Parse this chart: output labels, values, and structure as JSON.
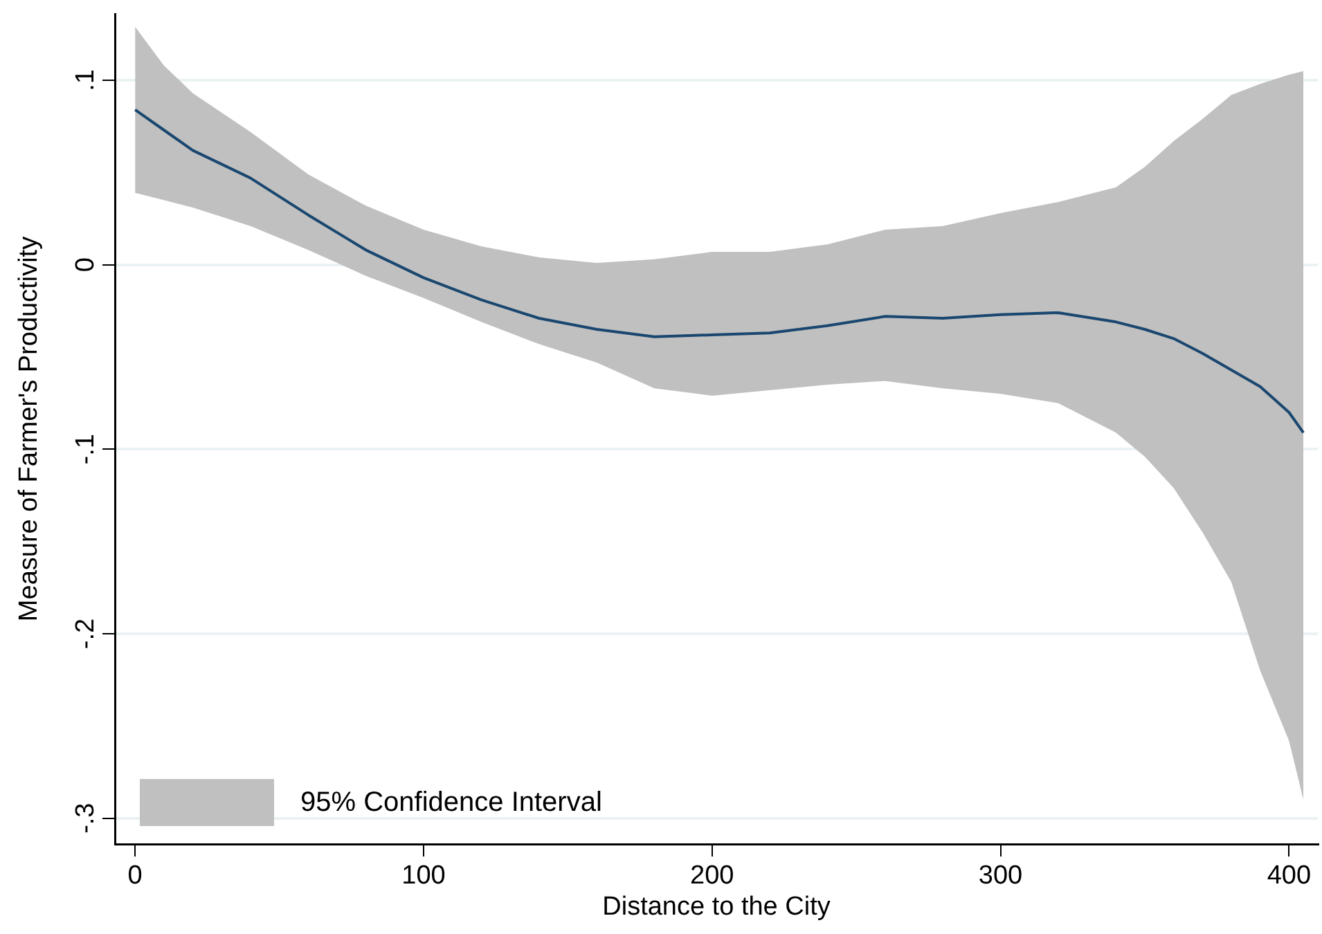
{
  "chart_data": {
    "type": "line",
    "xlabel": "Distance to the City",
    "ylabel": "Measure of Farmer's Productivity",
    "x": [
      0,
      10,
      20,
      40,
      60,
      80,
      100,
      120,
      140,
      160,
      180,
      200,
      220,
      240,
      260,
      280,
      300,
      320,
      340,
      350,
      360,
      370,
      380,
      390,
      400,
      405
    ],
    "series": [
      {
        "name": "95% Confidence Interval",
        "color": "#1a476f",
        "values": [
          0.084,
          0.073,
          0.062,
          0.047,
          0.027,
          0.008,
          -0.007,
          -0.019,
          -0.029,
          -0.035,
          -0.039,
          -0.038,
          -0.037,
          -0.033,
          -0.028,
          -0.029,
          -0.027,
          -0.026,
          -0.031,
          -0.035,
          -0.04,
          -0.048,
          -0.057,
          -0.066,
          -0.08,
          -0.091
        ],
        "lower": [
          0.039,
          0.035,
          0.031,
          0.021,
          0.008,
          -0.006,
          -0.018,
          -0.031,
          -0.043,
          -0.053,
          -0.067,
          -0.071,
          -0.068,
          -0.065,
          -0.063,
          -0.067,
          -0.07,
          -0.075,
          -0.091,
          -0.104,
          -0.121,
          -0.145,
          -0.172,
          -0.22,
          -0.258,
          -0.29
        ],
        "upper": [
          0.129,
          0.108,
          0.093,
          0.072,
          0.049,
          0.032,
          0.019,
          0.01,
          0.004,
          0.001,
          0.003,
          0.007,
          0.007,
          0.011,
          0.019,
          0.021,
          0.028,
          0.034,
          0.042,
          0.053,
          0.067,
          0.079,
          0.092,
          0.098,
          0.103,
          0.105
        ]
      }
    ],
    "xlim": [
      -7,
      410
    ],
    "xticks": [
      0,
      100,
      200,
      300,
      400
    ],
    "ylim": [
      -0.314,
      0.136
    ],
    "yticks": [
      {
        "value": -0.3,
        "label": "-.3"
      },
      {
        "value": -0.2,
        "label": "-.2"
      },
      {
        "value": -0.1,
        "label": "-.1"
      },
      0,
      {
        "value": 0.1,
        "label": ".1"
      }
    ],
    "grid": "y",
    "legend": "bottom left",
    "marker": "none",
    "line_style": "solid"
  }
}
